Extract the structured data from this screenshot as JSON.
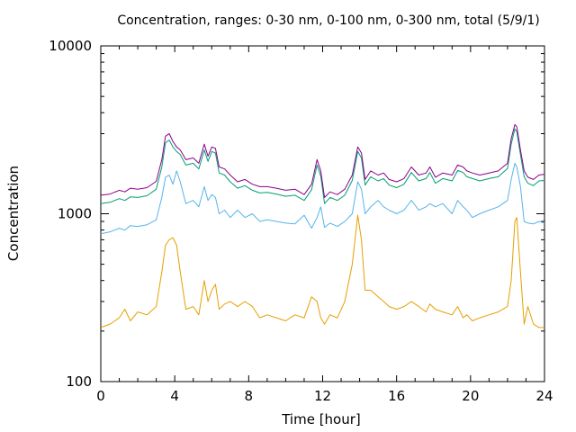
{
  "chart_data": {
    "type": "line",
    "title": "Concentration, ranges: 0-30 nm, 0-100 nm, 0-300 nm, total (5/9/1)",
    "xlabel": "Time [hour]",
    "ylabel": "Concentration",
    "xlim": [
      0,
      24
    ],
    "ylim": [
      100,
      10000
    ],
    "yscale": "log",
    "grid": false,
    "legend": "none",
    "x_ticks": [
      "0",
      "4",
      "8",
      "12",
      "16",
      "20",
      "24"
    ],
    "y_ticks": [
      "100",
      "1000",
      "10000"
    ],
    "x": [
      0,
      0.5,
      1,
      1.3,
      1.6,
      2,
      2.5,
      3,
      3.3,
      3.5,
      3.7,
      3.9,
      4.1,
      4.3,
      4.6,
      5,
      5.3,
      5.6,
      5.8,
      6.0,
      6.2,
      6.4,
      6.7,
      7,
      7.4,
      7.8,
      8.2,
      8.6,
      9,
      9.5,
      10,
      10.5,
      11,
      11.4,
      11.7,
      11.9,
      12.1,
      12.4,
      12.8,
      13.2,
      13.6,
      13.9,
      14.1,
      14.3,
      14.6,
      15,
      15.3,
      15.6,
      16,
      16.4,
      16.8,
      17.2,
      17.6,
      17.8,
      18.1,
      18.5,
      19,
      19.3,
      19.6,
      19.8,
      20.1,
      20.5,
      21,
      21.5,
      22,
      22.2,
      22.4,
      22.5,
      22.7,
      22.9,
      23.1,
      23.4,
      23.7,
      24
    ],
    "series": [
      {
        "color": "#8b008b",
        "values": [
          1290,
          1310,
          1380,
          1350,
          1420,
          1400,
          1430,
          1560,
          2100,
          2900,
          3000,
          2700,
          2500,
          2400,
          2100,
          2150,
          2000,
          2600,
          2200,
          2500,
          2450,
          1900,
          1850,
          1700,
          1550,
          1600,
          1500,
          1450,
          1450,
          1420,
          1380,
          1400,
          1300,
          1500,
          2100,
          1800,
          1250,
          1350,
          1300,
          1400,
          1700,
          2500,
          2300,
          1600,
          1800,
          1700,
          1750,
          1600,
          1550,
          1620,
          1900,
          1700,
          1750,
          1900,
          1650,
          1750,
          1700,
          1950,
          1900,
          1800,
          1750,
          1700,
          1750,
          1800,
          2000,
          2800,
          3400,
          3300,
          2400,
          1800,
          1650,
          1600,
          1700,
          1720
        ]
      },
      {
        "color": "#009e73",
        "values": [
          1150,
          1170,
          1230,
          1200,
          1260,
          1250,
          1280,
          1400,
          1900,
          2650,
          2750,
          2500,
          2350,
          2250,
          1950,
          2000,
          1850,
          2400,
          2050,
          2350,
          2300,
          1750,
          1700,
          1550,
          1420,
          1470,
          1380,
          1330,
          1340,
          1310,
          1270,
          1290,
          1200,
          1390,
          1950,
          1680,
          1150,
          1250,
          1200,
          1290,
          1580,
          2350,
          2150,
          1480,
          1660,
          1570,
          1620,
          1480,
          1430,
          1500,
          1760,
          1570,
          1620,
          1760,
          1520,
          1620,
          1570,
          1810,
          1760,
          1660,
          1620,
          1570,
          1620,
          1660,
          1860,
          2600,
          3200,
          3100,
          2250,
          1660,
          1520,
          1470,
          1570,
          1580
        ]
      },
      {
        "color": "#56b4e9",
        "values": [
          760,
          780,
          820,
          800,
          850,
          840,
          860,
          920,
          1250,
          1650,
          1700,
          1500,
          1800,
          1550,
          1150,
          1200,
          1100,
          1450,
          1200,
          1300,
          1250,
          1000,
          1050,
          950,
          1050,
          950,
          1000,
          900,
          920,
          900,
          880,
          870,
          980,
          820,
          950,
          1100,
          830,
          880,
          840,
          900,
          1000,
          1550,
          1400,
          1000,
          1100,
          1200,
          1100,
          1050,
          1000,
          1050,
          1200,
          1050,
          1100,
          1150,
          1100,
          1150,
          1000,
          1200,
          1100,
          1050,
          950,
          1000,
          1050,
          1100,
          1200,
          1600,
          2000,
          1900,
          1450,
          900,
          880,
          870,
          900,
          880
        ]
      },
      {
        "color": "#e69f00",
        "values": [
          210,
          220,
          240,
          270,
          230,
          260,
          250,
          280,
          450,
          650,
          700,
          720,
          650,
          450,
          270,
          280,
          250,
          400,
          300,
          350,
          380,
          270,
          290,
          300,
          280,
          300,
          280,
          240,
          250,
          240,
          230,
          250,
          240,
          320,
          300,
          240,
          220,
          250,
          240,
          300,
          500,
          980,
          700,
          350,
          350,
          320,
          300,
          280,
          270,
          280,
          300,
          280,
          260,
          290,
          270,
          260,
          250,
          280,
          240,
          250,
          230,
          240,
          250,
          260,
          280,
          400,
          900,
          950,
          450,
          220,
          280,
          220,
          210,
          210
        ]
      }
    ]
  }
}
